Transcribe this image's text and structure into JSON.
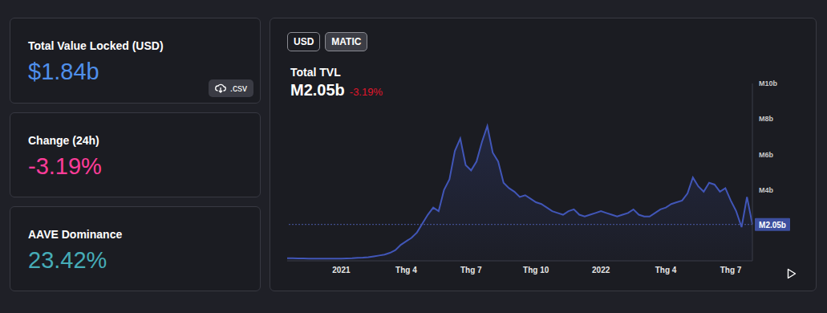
{
  "cards": [
    {
      "label": "Total Value Locked (USD)",
      "value": "$1.84b",
      "button": ".csv"
    },
    {
      "label": "Change (24h)",
      "value": "-3.19%"
    },
    {
      "label": "AAVE Dominance",
      "value": "23.42%"
    }
  ],
  "toggles": [
    "USD",
    "MATIC"
  ],
  "active_toggle": "MATIC",
  "chart_data": {
    "type": "area",
    "title": "Total TVL",
    "current": {
      "value": 2.05,
      "label": "M2.05b"
    },
    "change": "-3.19%",
    "categories": [
      null,
      null,
      null,
      null,
      null,
      null,
      null,
      null,
      null,
      null,
      "2021",
      null,
      null,
      null,
      null,
      null,
      null,
      null,
      null,
      null,
      null,
      null,
      "Thg 4",
      null,
      null,
      null,
      null,
      null,
      null,
      null,
      null,
      null,
      null,
      null,
      "Thg 7",
      null,
      null,
      null,
      null,
      null,
      null,
      null,
      null,
      null,
      null,
      null,
      "Thg 10",
      null,
      null,
      null,
      null,
      null,
      null,
      null,
      null,
      null,
      null,
      null,
      "2022",
      null,
      null,
      null,
      null,
      null,
      null,
      null,
      null,
      null,
      null,
      null,
      "Thg 4",
      null,
      null,
      null,
      null,
      null,
      null,
      null,
      null,
      null,
      null,
      null,
      "Thg 7",
      null,
      null,
      null,
      null
    ],
    "values": [
      0.15,
      0.15,
      0.14,
      0.14,
      0.13,
      0.12,
      0.12,
      0.12,
      0.12,
      0.13,
      0.13,
      0.14,
      0.15,
      0.17,
      0.18,
      0.2,
      0.25,
      0.3,
      0.35,
      0.45,
      0.6,
      0.9,
      1.1,
      1.3,
      1.6,
      2.1,
      2.6,
      3.0,
      2.8,
      4.0,
      4.6,
      6.2,
      6.9,
      5.4,
      5.1,
      5.6,
      6.7,
      7.6,
      6.1,
      5.6,
      4.4,
      4.1,
      3.9,
      3.6,
      3.7,
      3.5,
      3.3,
      3.2,
      3.0,
      2.8,
      2.7,
      2.6,
      2.8,
      2.9,
      2.6,
      2.5,
      2.6,
      2.7,
      2.8,
      2.7,
      2.6,
      2.5,
      2.6,
      2.7,
      2.9,
      2.6,
      2.5,
      2.5,
      2.7,
      2.9,
      3.0,
      3.2,
      3.3,
      3.4,
      3.8,
      4.7,
      4.2,
      3.9,
      4.4,
      4.3,
      3.9,
      4.1,
      3.4,
      2.8,
      1.9,
      3.6,
      2.05
    ],
    "color": "#4156b8",
    "ylim": [
      0,
      10
    ],
    "yticks": [
      {
        "value": 4,
        "label": "M4b"
      },
      {
        "value": 6,
        "label": "M6b"
      },
      {
        "value": 8,
        "label": "M8b"
      },
      {
        "value": 10,
        "label": "M10b"
      }
    ],
    "grid": false
  }
}
